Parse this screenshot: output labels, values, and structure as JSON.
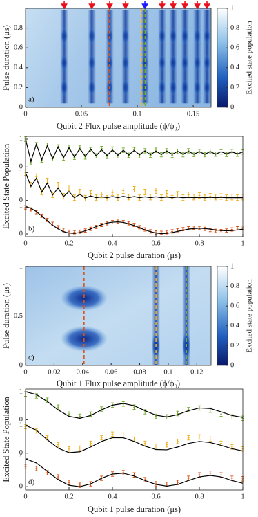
{
  "chart_data": [
    {
      "type": "heatmap",
      "panel_label": "a)",
      "xlabel": "Qubit 2 Flux pulse amplitude (ϕ/ϕ₀)",
      "ylabel": "Pulse duration (μs)",
      "xlim": [
        0,
        0.166
      ],
      "xticks": [
        0,
        0.05,
        0.1,
        0.15
      ],
      "ylim": [
        0,
        1
      ],
      "yticks": [
        0,
        0.2,
        0.4,
        0.6,
        0.8,
        1
      ],
      "colorbar": {
        "label": "Excited state population",
        "lim": [
          0,
          1
        ],
        "ticks": [
          0,
          0.2,
          0.4,
          0.6,
          0.8,
          1
        ]
      },
      "arrows": [
        {
          "x": 0.0346,
          "color": "#e8101c"
        },
        {
          "x": 0.0593,
          "color": "#e8101c"
        },
        {
          "x": 0.0753,
          "color": "#e8101c"
        },
        {
          "x": 0.0895,
          "color": "#e8101c"
        },
        {
          "x": 0.1068,
          "color": "#1a1aff"
        },
        {
          "x": 0.1222,
          "color": "#e8101c"
        },
        {
          "x": 0.1321,
          "color": "#e8101c"
        },
        {
          "x": 0.1426,
          "color": "#e8101c"
        },
        {
          "x": 0.1537,
          "color": "#e8101c"
        },
        {
          "x": 0.1623,
          "color": "#e8101c"
        }
      ],
      "dashed_lines": [
        {
          "x": 0.075,
          "color": "#d95319"
        },
        {
          "x": 0.104,
          "color": "#edb120"
        },
        {
          "x": 0.107,
          "color": "#77ac30"
        }
      ]
    },
    {
      "type": "line",
      "panel_label": "b)",
      "xlabel": "Qubit 2 pulse duration (μs)",
      "ylabel": "Excited State Population",
      "xlim": [
        0,
        1
      ],
      "xticks": [
        0,
        0.2,
        0.4,
        0.6,
        0.8,
        1
      ],
      "ylim": [
        -0.1,
        3.5
      ],
      "yticks": [
        0,
        1,
        {
          "value": 1.2,
          "label": "0"
        },
        {
          "value": 2.2,
          "label": "1"
        },
        {
          "value": 2.4,
          "label": "0"
        },
        {
          "value": 3.4,
          "label": "1"
        }
      ],
      "x": [
        0,
        0.025,
        0.05,
        0.075,
        0.1,
        0.125,
        0.15,
        0.175,
        0.2,
        0.225,
        0.25,
        0.275,
        0.3,
        0.325,
        0.35,
        0.375,
        0.4,
        0.425,
        0.45,
        0.475,
        0.5,
        0.525,
        0.55,
        0.575,
        0.6,
        0.625,
        0.65,
        0.675,
        0.7,
        0.725,
        0.75,
        0.775,
        0.8,
        0.825,
        0.85,
        0.875,
        0.9,
        0.925,
        0.95,
        0.975,
        1
      ],
      "series": [
        {
          "color": "#77ac30",
          "style": "errorbar",
          "error": 0.08,
          "values": [
            3.4,
            2.58,
            3.2,
            2.65,
            3.18,
            2.7,
            3.12,
            2.72,
            3.1,
            2.75,
            3.08,
            2.76,
            3.02,
            2.8,
            3.06,
            2.78,
            3.04,
            2.8,
            3.0,
            2.82,
            3.02,
            2.8,
            2.98,
            2.82,
            3.0,
            2.84,
            2.98,
            2.82,
            2.96,
            2.84,
            2.98,
            2.85,
            2.95,
            2.84,
            2.96,
            2.86,
            2.94,
            2.85,
            2.95,
            2.86,
            2.94
          ]
        },
        {
          "color": "#000000",
          "style": "line",
          "values": [
            3.4,
            2.6,
            3.22,
            2.66,
            3.16,
            2.7,
            3.12,
            2.73,
            3.09,
            2.76,
            3.06,
            2.78,
            3.04,
            2.8,
            3.02,
            2.81,
            3.01,
            2.82,
            3.0,
            2.83,
            2.99,
            2.84,
            2.98,
            2.84,
            2.97,
            2.85,
            2.97,
            2.85,
            2.96,
            2.86,
            2.96,
            2.86,
            2.95,
            2.86,
            2.95,
            2.86,
            2.95,
            2.87,
            2.94,
            2.87,
            2.94
          ]
        },
        {
          "color": "#edb120",
          "style": "errorbar",
          "error": 0.1,
          "values": [
            2.2,
            1.75,
            2.05,
            1.5,
            1.9,
            1.4,
            1.75,
            1.35,
            1.65,
            1.3,
            1.5,
            1.28,
            1.45,
            1.3,
            1.4,
            1.28,
            1.48,
            1.3,
            1.55,
            1.32,
            1.6,
            1.3,
            1.5,
            1.32,
            1.55,
            1.3,
            1.45,
            1.28,
            1.42,
            1.3,
            1.4,
            1.32,
            1.38,
            1.3,
            1.35,
            1.32,
            1.34,
            1.3,
            1.32,
            1.3,
            1.32
          ]
        },
        {
          "color": "#000000",
          "style": "line",
          "values": [
            2.2,
            1.7,
            2.0,
            1.5,
            1.82,
            1.4,
            1.65,
            1.34,
            1.52,
            1.3,
            1.42,
            1.29,
            1.36,
            1.3,
            1.33,
            1.3,
            1.34,
            1.3,
            1.35,
            1.3,
            1.34,
            1.3,
            1.33,
            1.3,
            1.33,
            1.3,
            1.32,
            1.3,
            1.32,
            1.3,
            1.31,
            1.3,
            1.31,
            1.3,
            1.31,
            1.3,
            1.31,
            1.3,
            1.3,
            1.3,
            1.3
          ]
        },
        {
          "color": "#d95319",
          "style": "errorbar",
          "error": 0.06,
          "values": [
            0.95,
            0.88,
            0.78,
            0.65,
            0.5,
            0.36,
            0.24,
            0.14,
            0.08,
            0.06,
            0.08,
            0.12,
            0.18,
            0.25,
            0.32,
            0.38,
            0.42,
            0.44,
            0.42,
            0.38,
            0.32,
            0.24,
            0.16,
            0.09,
            0.05,
            0.04,
            0.06,
            0.09,
            0.13,
            0.17,
            0.2,
            0.22,
            0.21,
            0.18,
            0.14,
            0.11,
            0.1,
            0.12,
            0.16,
            0.2,
            0.22
          ]
        },
        {
          "color": "#000000",
          "style": "line",
          "values": [
            0.98,
            0.92,
            0.8,
            0.64,
            0.47,
            0.31,
            0.18,
            0.08,
            0.03,
            0.02,
            0.05,
            0.11,
            0.18,
            0.26,
            0.33,
            0.39,
            0.42,
            0.43,
            0.41,
            0.36,
            0.3,
            0.22,
            0.14,
            0.08,
            0.03,
            0.01,
            0.02,
            0.05,
            0.09,
            0.13,
            0.17,
            0.19,
            0.2,
            0.19,
            0.17,
            0.14,
            0.12,
            0.11,
            0.12,
            0.14,
            0.17
          ]
        }
      ]
    },
    {
      "type": "heatmap",
      "panel_label": "c)",
      "xlabel": "Qubit 1 Flux pulse amplitude (ϕ/ϕ₀)",
      "ylabel": "Pulse duration (μs)",
      "xlim": [
        0,
        0.13
      ],
      "xticks": [
        0,
        0.02,
        0.04,
        0.06,
        0.08,
        0.1,
        0.12
      ],
      "ylim": [
        0,
        1
      ],
      "yticks": [
        0,
        0.5,
        1
      ],
      "colorbar": {
        "label": "Excited state population",
        "lim": [
          0,
          1
        ],
        "ticks": [
          0,
          0.2,
          0.4,
          0.6,
          0.8,
          1
        ]
      },
      "dashed_lines": [
        {
          "x": 0.041,
          "color": "#d95319"
        },
        {
          "x": 0.0914,
          "color": "#edb120"
        },
        {
          "x": 0.1127,
          "color": "#77ac30"
        }
      ]
    },
    {
      "type": "line",
      "panel_label": "d)",
      "xlabel": "Qubit 1 pulse duration (μs)",
      "ylabel": "Excited State Population",
      "xlim": [
        0,
        1
      ],
      "xticks": [
        0,
        0.2,
        0.4,
        0.6,
        0.8,
        1
      ],
      "ylim": [
        -0.12,
        3.5
      ],
      "yticks": [
        0,
        1,
        {
          "value": 1.2,
          "label": "0"
        },
        {
          "value": 2.2,
          "label": "1"
        },
        {
          "value": 2.4,
          "label": "0"
        },
        {
          "value": 3.4,
          "label": "1"
        }
      ],
      "x": [
        0,
        0.05,
        0.1,
        0.15,
        0.2,
        0.25,
        0.3,
        0.35,
        0.4,
        0.45,
        0.5,
        0.55,
        0.6,
        0.65,
        0.7,
        0.75,
        0.8,
        0.85,
        0.9,
        0.95,
        1
      ],
      "series": [
        {
          "color": "#77ac30",
          "style": "errorbar",
          "error": 0.08,
          "values": [
            3.32,
            3.25,
            3.1,
            2.85,
            2.6,
            2.52,
            2.6,
            2.78,
            2.92,
            2.96,
            2.85,
            2.68,
            2.52,
            2.5,
            2.62,
            2.76,
            2.82,
            2.74,
            2.6,
            2.5,
            2.45
          ]
        },
        {
          "color": "#000000",
          "style": "line",
          "values": [
            3.4,
            3.3,
            3.05,
            2.75,
            2.52,
            2.45,
            2.55,
            2.75,
            2.92,
            2.98,
            2.9,
            2.72,
            2.56,
            2.5,
            2.58,
            2.72,
            2.82,
            2.8,
            2.68,
            2.55,
            2.48
          ]
        },
        {
          "color": "#edb120",
          "style": "errorbar",
          "error": 0.08,
          "values": [
            2.15,
            2.0,
            1.75,
            1.5,
            1.35,
            1.38,
            1.55,
            1.75,
            1.88,
            1.85,
            1.7,
            1.55,
            1.45,
            1.5,
            1.62,
            1.75,
            1.78,
            1.7,
            1.55,
            1.42,
            1.35
          ]
        },
        {
          "color": "#000000",
          "style": "line",
          "values": [
            2.2,
            2.02,
            1.68,
            1.38,
            1.22,
            1.25,
            1.42,
            1.62,
            1.75,
            1.75,
            1.62,
            1.45,
            1.33,
            1.32,
            1.42,
            1.55,
            1.62,
            1.58,
            1.48,
            1.36,
            1.28
          ]
        },
        {
          "color": "#d95319",
          "style": "errorbar",
          "error": 0.08,
          "values": [
            0.72,
            0.65,
            0.5,
            0.35,
            0.15,
            0.05,
            0.1,
            0.3,
            0.45,
            0.5,
            0.42,
            0.25,
            0.1,
            0.08,
            0.15,
            0.3,
            0.42,
            0.48,
            0.42,
            0.3,
            0.28
          ]
        },
        {
          "color": "#000000",
          "style": "line",
          "values": [
            1.0,
            0.85,
            0.55,
            0.25,
            0.05,
            0.0,
            0.1,
            0.3,
            0.45,
            0.48,
            0.38,
            0.22,
            0.08,
            0.02,
            0.08,
            0.22,
            0.35,
            0.4,
            0.35,
            0.22,
            0.12
          ]
        }
      ]
    }
  ]
}
